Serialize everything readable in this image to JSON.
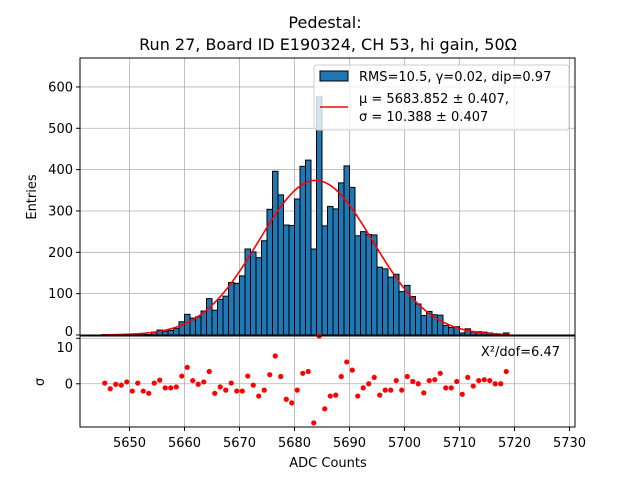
{
  "chart_data": [
    {
      "type": "bar",
      "title_line1": "Pedestal:",
      "title_line2": "Run 27, Board ID E190324, CH 53, hi gain, 50Ω",
      "ylabel": "Entries",
      "xlim": [
        5641,
        5731
      ],
      "ylim": [
        0,
        670
      ],
      "yticks": [
        0,
        100,
        200,
        300,
        400,
        500,
        600
      ],
      "grid": true,
      "legend_position": "top-right",
      "bin_width": 1,
      "x": [
        5645.5,
        5646.5,
        5647.5,
        5648.5,
        5649.5,
        5650.5,
        5651.5,
        5652.5,
        5653.5,
        5654.5,
        5655.5,
        5656.5,
        5657.5,
        5658.5,
        5659.5,
        5660.5,
        5661.5,
        5662.5,
        5663.5,
        5664.5,
        5665.5,
        5666.5,
        5667.5,
        5668.5,
        5669.5,
        5670.5,
        5671.5,
        5672.5,
        5673.5,
        5674.5,
        5675.5,
        5676.5,
        5677.5,
        5678.5,
        5679.5,
        5680.5,
        5681.5,
        5682.5,
        5683.5,
        5684.5,
        5685.5,
        5686.5,
        5687.5,
        5688.5,
        5689.5,
        5690.5,
        5691.5,
        5692.5,
        5693.5,
        5694.5,
        5695.5,
        5696.5,
        5697.5,
        5698.5,
        5699.5,
        5700.5,
        5701.5,
        5702.5,
        5703.5,
        5704.5,
        5705.5,
        5706.5,
        5707.5,
        5708.5,
        5709.5,
        5710.5,
        5711.5,
        5712.5,
        5713.5,
        5714.5,
        5715.5,
        5716.5,
        5717.5,
        5718.5
      ],
      "values": [
        1,
        0,
        1,
        1,
        2,
        1,
        3,
        1,
        1,
        7,
        12,
        9,
        11,
        16,
        32,
        50,
        41,
        44,
        58,
        88,
        60,
        86,
        94,
        127,
        125,
        143,
        208,
        201,
        187,
        228,
        304,
        396,
        339,
        266,
        265,
        329,
        408,
        423,
        208,
        576,
        264,
        311,
        305,
        368,
        409,
        357,
        240,
        250,
        243,
        242,
        164,
        160,
        140,
        147,
        105,
        120,
        93,
        75,
        47,
        57,
        49,
        48,
        23,
        18,
        20,
        5,
        15,
        7,
        8,
        7,
        5,
        3,
        2,
        5
      ],
      "bar_color": "#1f77b4",
      "fit": {
        "mu": 5683.852,
        "sigma": 10.388,
        "amplitude": 374,
        "color": "#ff0000"
      },
      "legend": [
        {
          "label": "RMS=10.5, γ=0.02, dip=0.97",
          "kind": "bar"
        },
        {
          "label_line1": "μ = 5683.852 ± 0.407,",
          "label_line2": "σ = 10.388 ± 0.407",
          "kind": "line"
        }
      ]
    },
    {
      "type": "scatter",
      "xlabel": "ADC Counts",
      "ylabel": "σ",
      "xlim": [
        5641,
        5731
      ],
      "ylim": [
        -9.5,
        10.5
      ],
      "yticks": [
        0,
        10
      ],
      "xticks": [
        5650,
        5660,
        5670,
        5680,
        5690,
        5700,
        5710,
        5720,
        5730
      ],
      "grid": true,
      "annotation": "X²/dof=6.47",
      "point_color": "#ff0000",
      "residuals": [
        0.15,
        -1.1,
        -0.1,
        -0.3,
        0.4,
        -1.6,
        0.15,
        -1.6,
        -2.1,
        0.15,
        0.8,
        -0.9,
        -0.9,
        -0.7,
        1.7,
        3.6,
        0.7,
        -0.1,
        0.4,
        2.7,
        -2.1,
        -0.7,
        -1.4,
        0.15,
        -1.6,
        -1.6,
        1.7,
        -0.3,
        -2.7,
        -1.4,
        2.0,
        6.1,
        1.6,
        -3.4,
        -4.2,
        -1.4,
        2.3,
        2.7,
        -8.6,
        10.5,
        -5.5,
        -2.7,
        -2.5,
        1.6,
        4.8,
        3.0,
        -2.7,
        -0.9,
        0,
        1.4,
        -2.5,
        -1.4,
        -1.4,
        0.7,
        -1.4,
        1.6,
        0.5,
        0,
        -2.0,
        0.7,
        0.9,
        2.3,
        -0.9,
        -0.9,
        0.5,
        -2.3,
        1.4,
        -0.5,
        0.7,
        0.9,
        0.7,
        0,
        0,
        2.7
      ]
    }
  ]
}
